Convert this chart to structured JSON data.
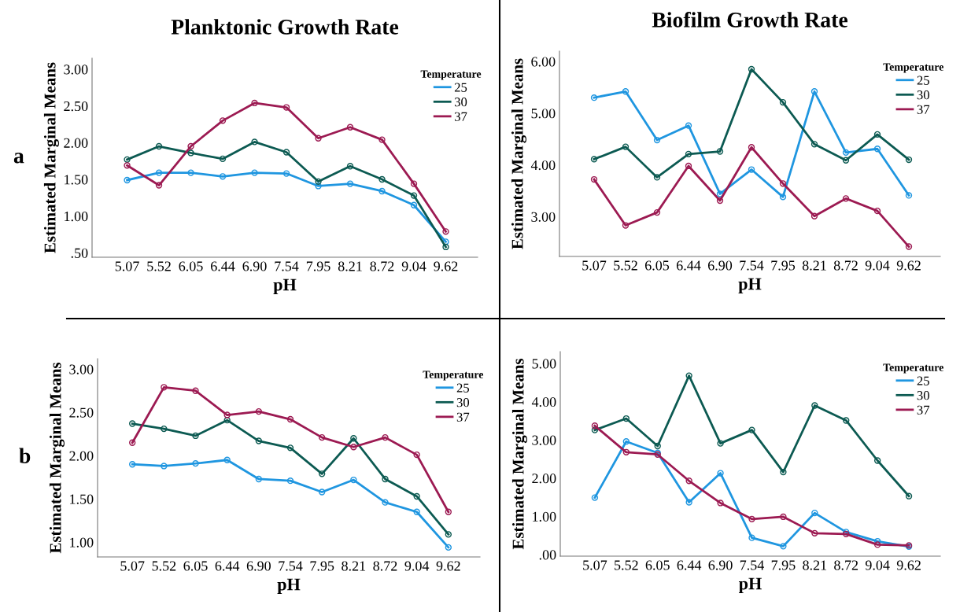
{
  "chart_data": [
    {
      "type": "line",
      "title": "Planktonic Growth Rate",
      "xlabel": "pH",
      "ylabel": "Estimated Marginal Means",
      "legend_title": "Temperature",
      "annotations": [
        "a"
      ],
      "categories": [
        "5.07",
        "5.52",
        "6.05",
        "6.44",
        "6.90",
        "7.54",
        "7.95",
        "8.21",
        "8.72",
        "9.04",
        "9.62"
      ],
      "ylim": [
        0.44,
        3.15
      ],
      "yticks": [
        {
          "value": 0.5,
          "label": ".50"
        },
        {
          "value": 1,
          "label": "1.00"
        },
        {
          "value": 1.5,
          "label": "1.50"
        },
        {
          "value": 2,
          "label": "2.00"
        },
        {
          "value": 2.5,
          "label": "2.50"
        },
        {
          "value": 3,
          "label": "3.00"
        }
      ],
      "grid": false,
      "legend": "top right",
      "marker": "circle",
      "line_style": "solid",
      "series": [
        {
          "name": "25",
          "color": "#1f96e0",
          "values": [
            1.49,
            1.59,
            1.59,
            1.54,
            1.59,
            1.58,
            1.41,
            1.44,
            1.34,
            1.15,
            0.65
          ]
        },
        {
          "name": "30",
          "color": "#0c5a52",
          "values": [
            1.77,
            1.95,
            1.86,
            1.78,
            2.01,
            1.87,
            1.47,
            1.68,
            1.5,
            1.28,
            0.58
          ]
        },
        {
          "name": "37",
          "color": "#9c1a52",
          "values": [
            1.69,
            1.42,
            1.95,
            2.3,
            2.54,
            2.48,
            2.06,
            2.21,
            2.04,
            1.44,
            0.79
          ]
        }
      ]
    },
    {
      "type": "line",
      "title": "Biofilm Growth Rate",
      "xlabel": "pH",
      "ylabel": "Estimated Marginal Means",
      "legend_title": "Temperature",
      "categories": [
        "5.07",
        "5.52",
        "6.05",
        "6.44",
        "6.90",
        "7.54",
        "7.95",
        "8.21",
        "8.72",
        "9.04",
        "9.62"
      ],
      "ylim": [
        2.23,
        6.2
      ],
      "yticks": [
        {
          "value": 3,
          "label": "3.00"
        },
        {
          "value": 4,
          "label": "4.00"
        },
        {
          "value": 5,
          "label": "5.00"
        },
        {
          "value": 6,
          "label": "6.00"
        }
      ],
      "grid": false,
      "legend": "top right",
      "marker": "circle",
      "line_style": "solid",
      "series": [
        {
          "name": "25",
          "color": "#1f96e0",
          "values": [
            5.3,
            5.42,
            4.48,
            4.76,
            3.44,
            3.91,
            3.38,
            5.42,
            4.24,
            4.31,
            3.41
          ]
        },
        {
          "name": "30",
          "color": "#0c5a52",
          "values": [
            4.11,
            4.35,
            3.76,
            4.21,
            4.26,
            5.85,
            5.21,
            4.4,
            4.09,
            4.59,
            4.1
          ]
        },
        {
          "name": "37",
          "color": "#9c1a52",
          "values": [
            3.72,
            2.83,
            3.08,
            3.98,
            3.31,
            4.34,
            3.64,
            3.01,
            3.35,
            3.11,
            2.42
          ]
        }
      ]
    },
    {
      "type": "line",
      "xlabel": "pH",
      "ylabel": "Estimated Marginal Means",
      "legend_title": "Temperature",
      "annotations": [
        "b"
      ],
      "categories": [
        "5.07",
        "5.52",
        "6.05",
        "6.44",
        "6.90",
        "7.54",
        "7.95",
        "8.21",
        "8.72",
        "9.04",
        "9.62"
      ],
      "ylim": [
        0.83,
        3.12
      ],
      "yticks": [
        {
          "value": 1,
          "label": "1.00"
        },
        {
          "value": 1.5,
          "label": "1.50"
        },
        {
          "value": 2,
          "label": "2.00"
        },
        {
          "value": 2.5,
          "label": "2.50"
        },
        {
          "value": 3,
          "label": "3.00"
        }
      ],
      "grid": false,
      "legend": "top right",
      "marker": "circle",
      "line_style": "solid",
      "series": [
        {
          "name": "25",
          "color": "#1f96e0",
          "values": [
            1.9,
            1.88,
            1.91,
            1.95,
            1.73,
            1.71,
            1.58,
            1.72,
            1.46,
            1.35,
            0.94
          ]
        },
        {
          "name": "30",
          "color": "#0c5a52",
          "values": [
            2.37,
            2.31,
            2.23,
            2.41,
            2.17,
            2.09,
            1.79,
            2.2,
            1.73,
            1.53,
            1.09
          ]
        },
        {
          "name": "37",
          "color": "#9c1a52",
          "values": [
            2.15,
            2.79,
            2.75,
            2.47,
            2.51,
            2.42,
            2.21,
            2.1,
            2.21,
            2.01,
            1.35
          ]
        }
      ]
    },
    {
      "type": "line",
      "xlabel": "pH",
      "ylabel": "Estimated Marginal Means",
      "legend_title": "Temperature",
      "categories": [
        "5.07",
        "5.52",
        "6.05",
        "6.44",
        "6.90",
        "7.54",
        "7.95",
        "8.21",
        "8.72",
        "9.04",
        "9.62"
      ],
      "ylim": [
        -0.04,
        5.31
      ],
      "yticks": [
        {
          "value": 0,
          "label": ".00"
        },
        {
          "value": 1,
          "label": "1.00"
        },
        {
          "value": 2,
          "label": "2.00"
        },
        {
          "value": 3,
          "label": "3.00"
        },
        {
          "value": 4,
          "label": "4.00"
        },
        {
          "value": 5,
          "label": "5.00"
        }
      ],
      "grid": false,
      "legend": "top right",
      "marker": "circle",
      "line_style": "solid",
      "series": [
        {
          "name": "25",
          "color": "#1f96e0",
          "values": [
            1.49,
            2.96,
            2.66,
            1.37,
            2.13,
            0.44,
            0.22,
            1.09,
            0.59,
            0.35,
            0.21
          ]
        },
        {
          "name": "30",
          "color": "#0c5a52",
          "values": [
            3.26,
            3.56,
            2.84,
            4.68,
            2.91,
            3.26,
            2.16,
            3.9,
            3.51,
            2.46,
            1.53
          ]
        },
        {
          "name": "37",
          "color": "#9c1a52",
          "values": [
            3.37,
            2.68,
            2.62,
            1.93,
            1.35,
            0.93,
            0.99,
            0.56,
            0.54,
            0.26,
            0.24
          ]
        }
      ]
    }
  ]
}
